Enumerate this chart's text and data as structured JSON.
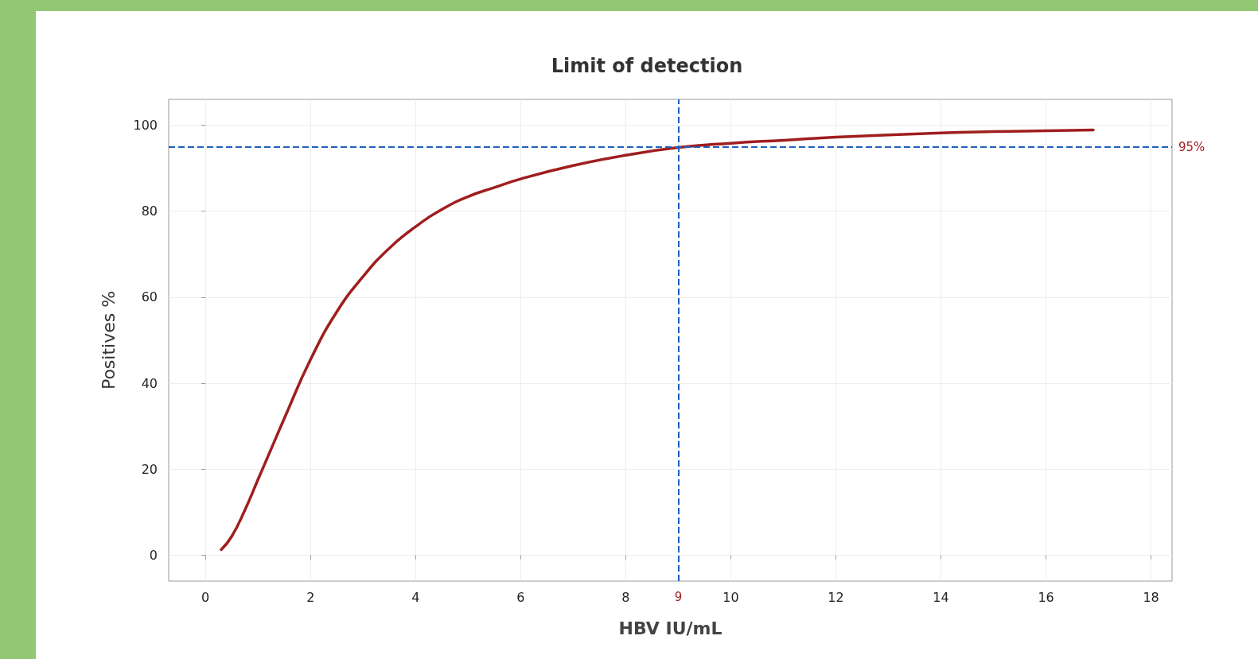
{
  "chart_data": {
    "type": "line",
    "title": "Limit of detection",
    "xlabel": "HBV IU/mL",
    "ylabel": "Positives %",
    "x": [
      0.3,
      0.5,
      0.75,
      1,
      1.25,
      1.5,
      2,
      2.5,
      3,
      3.5,
      4,
      4.5,
      5,
      5.5,
      6,
      7,
      8,
      9,
      10,
      11,
      12,
      14,
      15,
      16.9
    ],
    "series": [
      {
        "color": "#a01e1e",
        "values": [
          1.3,
          4.4,
          10.5,
          17.6,
          24.7,
          31.8,
          45.5,
          56.6,
          64.8,
          71.4,
          76.4,
          80.4,
          83.4,
          85.5,
          87.5,
          90.6,
          93,
          94.8,
          95.8,
          96.5,
          97.2,
          98.2,
          98.5,
          98.9
        ]
      }
    ],
    "xlim": [
      -0.7,
      18.4
    ],
    "xticks": [
      0,
      2,
      4,
      6,
      8,
      10,
      12,
      14,
      16,
      18
    ],
    "ylim": [
      -6,
      106
    ],
    "yticks": [
      0,
      20,
      40,
      60,
      80,
      100
    ],
    "ref_lines": [
      {
        "axis": "y",
        "value": 95,
        "label": "95%",
        "color": "#1f5fbf",
        "line_style": "dashed"
      },
      {
        "axis": "x",
        "value": 9,
        "label": "9",
        "color": "#1f5fbf",
        "line_style": "dashed"
      }
    ],
    "grid": true,
    "marker": "none",
    "line_style": "solid"
  }
}
